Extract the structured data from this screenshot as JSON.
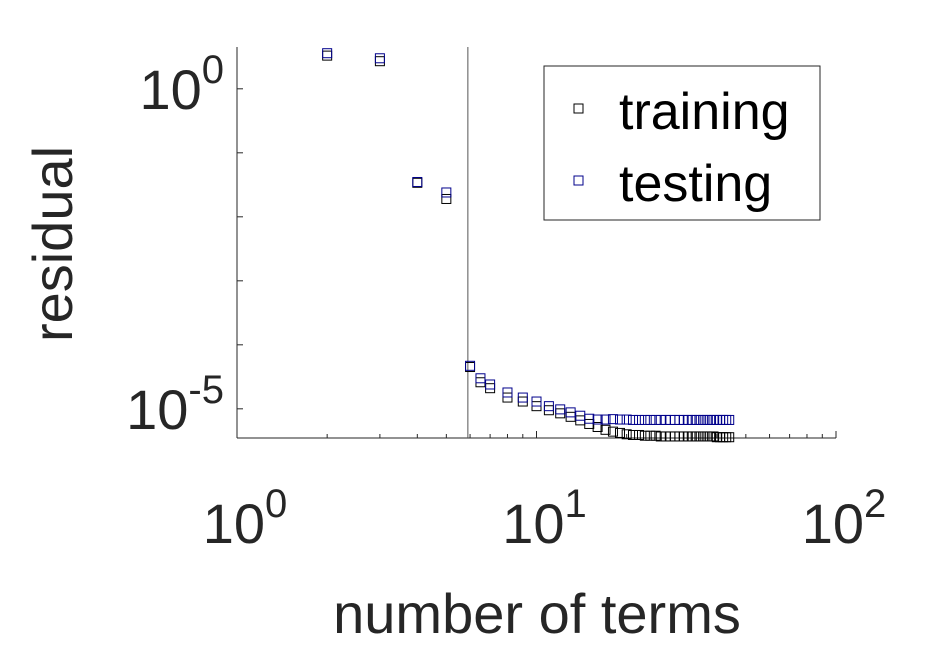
{
  "chart_data": {
    "type": "scatter",
    "title": "",
    "xlabel": "number of terms",
    "ylabel": "residual",
    "x_scale": "log",
    "y_scale": "log",
    "xlim": [
      1,
      100
    ],
    "ylim": [
      3.5e-06,
      4.5
    ],
    "x_ticks": [
      {
        "value": 1,
        "base": "10",
        "exp": "0"
      },
      {
        "value": 10,
        "base": "10",
        "exp": "1"
      },
      {
        "value": 100,
        "base": "10",
        "exp": "2"
      }
    ],
    "y_ticks": [
      {
        "value": 1,
        "base": "10",
        "exp": "0"
      },
      {
        "value": 1e-05,
        "base": "10",
        "exp": "-5"
      }
    ],
    "reference_line_x": 5.9,
    "legend": {
      "position": "top-right",
      "entries": [
        "training",
        "testing"
      ]
    },
    "series": [
      {
        "name": "training",
        "color": "#000000",
        "marker": "square",
        "points": [
          [
            2,
            3.3
          ],
          [
            3,
            2.7
          ],
          [
            4,
            0.034
          ],
          [
            5,
            0.019
          ],
          [
            6,
            4.5e-05
          ],
          [
            6.5,
            2.6e-05
          ],
          [
            7,
            2.1e-05
          ],
          [
            8,
            1.5e-05
          ],
          [
            9,
            1.3e-05
          ],
          [
            10,
            1.1e-05
          ],
          [
            11,
            9.5e-06
          ],
          [
            12,
            8.5e-06
          ],
          [
            13,
            7.5e-06
          ],
          [
            14,
            6.6e-06
          ],
          [
            15,
            5.8e-06
          ],
          [
            16,
            5.2e-06
          ],
          [
            17,
            4.7e-06
          ],
          [
            18,
            4.4e-06
          ],
          [
            19,
            4.2e-06
          ],
          [
            20,
            4e-06
          ],
          [
            21,
            3.9e-06
          ],
          [
            22,
            3.9e-06
          ],
          [
            23,
            3.8e-06
          ],
          [
            24,
            3.8e-06
          ],
          [
            25,
            3.8e-06
          ],
          [
            26,
            3.7e-06
          ],
          [
            27,
            3.7e-06
          ],
          [
            28,
            3.7e-06
          ],
          [
            29,
            3.7e-06
          ],
          [
            30,
            3.7e-06
          ],
          [
            31,
            3.7e-06
          ],
          [
            32,
            3.7e-06
          ],
          [
            33,
            3.7e-06
          ],
          [
            34,
            3.7e-06
          ],
          [
            35,
            3.7e-06
          ],
          [
            36,
            3.7e-06
          ],
          [
            37,
            3.7e-06
          ],
          [
            38,
            3.7e-06
          ],
          [
            39,
            3.7e-06
          ],
          [
            40,
            3.6e-06
          ],
          [
            41,
            3.6e-06
          ],
          [
            42,
            3.6e-06
          ],
          [
            43,
            3.6e-06
          ],
          [
            44,
            3.6e-06
          ]
        ]
      },
      {
        "name": "testing",
        "color": "#00008b",
        "marker": "square",
        "points": [
          [
            2,
            3.6
          ],
          [
            3,
            3.0
          ],
          [
            4,
            0.035
          ],
          [
            5,
            0.024
          ],
          [
            6,
            4.7e-05
          ],
          [
            6.5,
            3e-05
          ],
          [
            7,
            2.4e-05
          ],
          [
            8,
            1.8e-05
          ],
          [
            9,
            1.5e-05
          ],
          [
            10,
            1.3e-05
          ],
          [
            11,
            1.1e-05
          ],
          [
            12,
            9.8e-06
          ],
          [
            13,
            8.8e-06
          ],
          [
            14,
            7.8e-06
          ],
          [
            15,
            7e-06
          ],
          [
            16,
            6.8e-06
          ],
          [
            17,
            6.8e-06
          ],
          [
            18,
            6.9e-06
          ],
          [
            19,
            6.8e-06
          ],
          [
            20,
            6.8e-06
          ],
          [
            21,
            6.7e-06
          ],
          [
            22,
            6.7e-06
          ],
          [
            23,
            6.7e-06
          ],
          [
            24,
            6.7e-06
          ],
          [
            25,
            6.7e-06
          ],
          [
            26,
            6.7e-06
          ],
          [
            27,
            6.7e-06
          ],
          [
            28,
            6.7e-06
          ],
          [
            29,
            6.7e-06
          ],
          [
            30,
            6.7e-06
          ],
          [
            31,
            6.7e-06
          ],
          [
            32,
            6.7e-06
          ],
          [
            33,
            6.7e-06
          ],
          [
            34,
            6.7e-06
          ],
          [
            35,
            6.7e-06
          ],
          [
            36,
            6.7e-06
          ],
          [
            37,
            6.7e-06
          ],
          [
            38,
            6.7e-06
          ],
          [
            39,
            6.7e-06
          ],
          [
            40,
            6.7e-06
          ],
          [
            41,
            6.7e-06
          ],
          [
            42,
            6.7e-06
          ],
          [
            43,
            6.7e-06
          ],
          [
            44,
            6.7e-06
          ]
        ]
      }
    ]
  }
}
